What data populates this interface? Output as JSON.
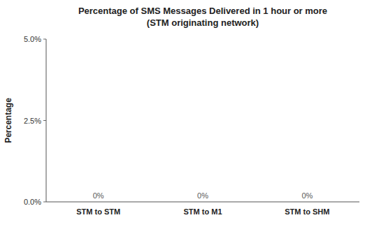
{
  "chart_data": {
    "type": "bar",
    "title": "Percentage of SMS Messages Delivered in 1 hour or more",
    "subtitle": "(STM originating network)",
    "categories": [
      "STM to STM",
      "STM to M1",
      "STM to SHM"
    ],
    "values": [
      0.0,
      0.0,
      0.0
    ],
    "value_labels": [
      "0%",
      "0%",
      "0%"
    ],
    "data_labels": true,
    "y_label": "Percentage",
    "ylim": [
      0,
      0.05
    ],
    "yticks": [
      {
        "value": 0.0,
        "label": "0.0%"
      },
      {
        "value": 0.025,
        "label": "2.5%"
      },
      {
        "value": 0.05,
        "label": "5.0%"
      }
    ],
    "grid": false
  }
}
